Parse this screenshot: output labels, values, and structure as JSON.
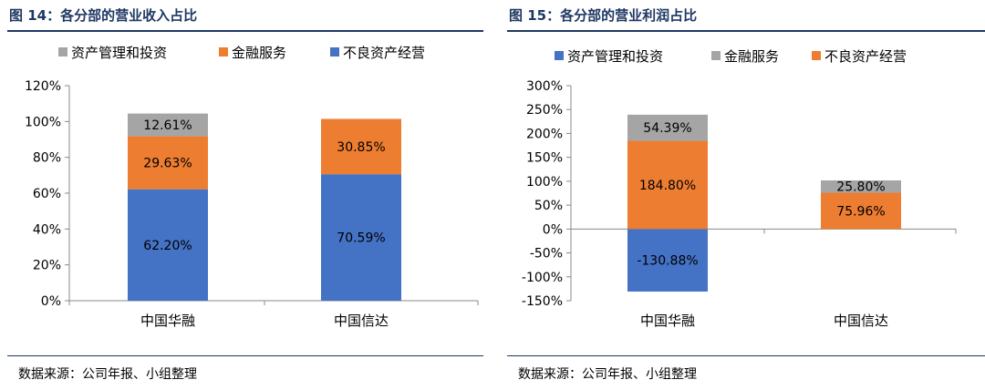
{
  "figures": [
    {
      "title": "图 14：各分部的营业收入占比",
      "source": "数据来源：公司年报、小组整理"
    },
    {
      "title": "图 15：各分部的营业利润占比",
      "source": "数据来源：公司年报、小组整理"
    }
  ],
  "chart_data": [
    {
      "type": "bar",
      "stacked": true,
      "title": "图 14：各分部的营业收入占比",
      "categories": [
        "中国华融",
        "中国信达"
      ],
      "series": [
        {
          "name": "不良资产经营",
          "values": [
            62.2,
            70.59
          ],
          "labels": [
            "62.20%",
            "70.59%"
          ],
          "color": "#4472c4"
        },
        {
          "name": "金融服务",
          "values": [
            29.63,
            30.85
          ],
          "labels": [
            "29.63%",
            "30.85%"
          ],
          "color": "#ed7d31"
        },
        {
          "name": "资产管理和投资",
          "values": [
            12.61,
            0
          ],
          "labels": [
            "12.61%",
            ""
          ],
          "color": "#a5a5a5"
        }
      ],
      "legend_order": [
        "资产管理和投资",
        "金融服务",
        "不良资产经营"
      ],
      "legend_position": "top",
      "ylim": [
        0,
        120
      ],
      "yticks": [
        0,
        20,
        40,
        60,
        80,
        100,
        120
      ],
      "ytick_labels": [
        "0%",
        "20%",
        "40%",
        "60%",
        "80%",
        "100%",
        "120%"
      ],
      "grid": false
    },
    {
      "type": "bar",
      "stacked": true,
      "title": "图 15：各分部的营业利润占比",
      "categories": [
        "中国华融",
        "中国信达"
      ],
      "series": [
        {
          "name": "资产管理和投资",
          "values": [
            -130.88,
            0
          ],
          "labels": [
            "-130.88%",
            ""
          ],
          "color": "#4472c4"
        },
        {
          "name": "不良资产经营",
          "values": [
            184.8,
            75.96
          ],
          "labels": [
            "184.80%",
            "75.96%"
          ],
          "color": "#ed7d31"
        },
        {
          "name": "金融服务",
          "values": [
            54.39,
            25.8
          ],
          "labels": [
            "54.39%",
            "25.80%"
          ],
          "color": "#a5a5a5"
        }
      ],
      "legend_order": [
        "资产管理和投资",
        "金融服务",
        "不良资产经营"
      ],
      "legend_position": "top",
      "ylim": [
        -150,
        300
      ],
      "yticks": [
        -150,
        -100,
        -50,
        0,
        50,
        100,
        150,
        200,
        250,
        300
      ],
      "ytick_labels": [
        "-150%",
        "-100%",
        "-50%",
        "0%",
        "50%",
        "100%",
        "150%",
        "200%",
        "250%",
        "300%"
      ],
      "grid": false
    }
  ]
}
